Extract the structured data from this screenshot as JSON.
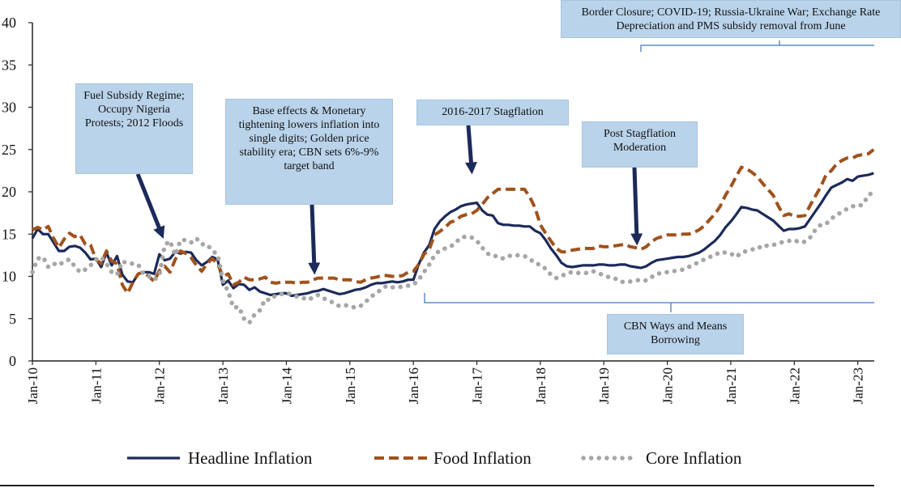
{
  "chart_data": {
    "type": "line",
    "categories": [
      "Jan-10",
      null,
      null,
      null,
      null,
      null,
      null,
      null,
      null,
      null,
      null,
      null,
      "Jan-11",
      null,
      null,
      null,
      null,
      null,
      null,
      null,
      null,
      null,
      null,
      null,
      "Jan-12",
      null,
      null,
      null,
      null,
      null,
      null,
      null,
      null,
      null,
      null,
      null,
      "Jan-13",
      null,
      null,
      null,
      null,
      null,
      null,
      null,
      null,
      null,
      null,
      null,
      "Jan-14",
      null,
      null,
      null,
      null,
      null,
      null,
      null,
      null,
      null,
      null,
      null,
      "Jan-15",
      null,
      null,
      null,
      null,
      null,
      null,
      null,
      null,
      null,
      null,
      null,
      "Jan-16",
      null,
      null,
      null,
      null,
      null,
      null,
      null,
      null,
      null,
      null,
      null,
      "Jan-17",
      null,
      null,
      null,
      null,
      null,
      null,
      null,
      null,
      null,
      null,
      null,
      "Jan-18",
      null,
      null,
      null,
      null,
      null,
      null,
      null,
      null,
      null,
      null,
      null,
      "Jan-19",
      null,
      null,
      null,
      null,
      null,
      null,
      null,
      null,
      null,
      null,
      null,
      "Jan-20",
      null,
      null,
      null,
      null,
      null,
      null,
      null,
      null,
      null,
      null,
      null,
      "Jan-21",
      null,
      null,
      null,
      null,
      null,
      null,
      null,
      null,
      null,
      null,
      null,
      "Jan-22",
      null,
      null,
      null,
      null,
      null,
      null,
      null,
      null,
      null,
      null,
      null,
      "Jan-23",
      null,
      null,
      null
    ],
    "series": [
      {
        "name": "Headline Inflation",
        "color": "#1c2a5a",
        "style": "solid",
        "values": [
          14.5,
          15.6,
          15.0,
          15.0,
          14.0,
          13.0,
          13.0,
          13.5,
          13.6,
          13.4,
          12.8,
          12.0,
          12.1,
          11.1,
          12.8,
          11.3,
          12.4,
          10.2,
          9.4,
          9.3,
          10.3,
          10.5,
          10.5,
          10.3,
          12.6,
          11.9,
          12.1,
          12.9,
          12.7,
          12.9,
          12.8,
          11.9,
          11.3,
          11.7,
          12.3,
          12.0,
          9.0,
          9.5,
          8.6,
          9.1,
          9.0,
          8.4,
          8.7,
          8.2,
          8.0,
          7.8,
          7.9,
          8.0,
          8.0,
          7.7,
          7.8,
          7.9,
          8.0,
          8.2,
          8.3,
          8.5,
          8.3,
          8.1,
          7.9,
          8.0,
          8.2,
          8.4,
          8.5,
          8.7,
          9.0,
          9.2,
          9.2,
          9.3,
          9.4,
          9.3,
          9.4,
          9.6,
          9.6,
          11.4,
          12.8,
          13.7,
          15.6,
          16.5,
          17.1,
          17.6,
          17.9,
          18.3,
          18.5,
          18.6,
          18.7,
          17.8,
          17.3,
          17.2,
          16.3,
          16.1,
          16.1,
          16.0,
          16.0,
          15.9,
          15.9,
          15.4,
          15.1,
          14.3,
          13.3,
          12.5,
          11.6,
          11.2,
          11.1,
          11.2,
          11.3,
          11.3,
          11.3,
          11.4,
          11.4,
          11.3,
          11.3,
          11.4,
          11.4,
          11.2,
          11.1,
          11.0,
          11.2,
          11.6,
          11.9,
          12.0,
          12.1,
          12.2,
          12.3,
          12.3,
          12.4,
          12.6,
          12.8,
          13.2,
          13.7,
          14.2,
          14.9,
          15.8,
          16.5,
          17.3,
          18.2,
          18.1,
          17.9,
          17.8,
          17.4,
          17.0,
          16.6,
          16.0,
          15.4,
          15.6,
          15.6,
          15.7,
          15.9,
          16.8,
          17.7,
          18.6,
          19.6,
          20.5,
          20.8,
          21.1,
          21.5,
          21.3,
          21.8,
          21.9,
          22.0,
          22.2
        ]
      },
      {
        "name": "Food Inflation",
        "color": "#a0521d",
        "style": "dashed",
        "values": [
          15.5,
          15.8,
          15.5,
          15.9,
          14.5,
          13.4,
          14.4,
          15.1,
          14.7,
          14.9,
          13.8,
          13.7,
          12.0,
          11.5,
          13.0,
          11.8,
          11.5,
          9.0,
          8.0,
          9.3,
          10.3,
          10.5,
          10.0,
          9.4,
          10.7,
          11.2,
          10.5,
          12.0,
          13.0,
          12.7,
          12.2,
          11.3,
          10.6,
          11.5,
          12.1,
          11.5,
          10.0,
          10.3,
          9.0,
          9.3,
          9.9,
          9.6,
          9.6,
          9.7,
          9.9,
          9.3,
          9.2,
          9.3,
          9.3,
          9.3,
          9.2,
          9.3,
          9.3,
          9.6,
          9.8,
          9.8,
          9.8,
          9.8,
          9.6,
          9.6,
          9.6,
          9.4,
          9.3,
          9.6,
          9.8,
          9.9,
          10.1,
          10.1,
          10.0,
          10.0,
          10.1,
          10.5,
          10.6,
          11.4,
          12.6,
          13.2,
          14.9,
          15.3,
          15.8,
          16.4,
          16.6,
          17.1,
          17.3,
          17.4,
          17.8,
          18.5,
          19.3,
          19.8,
          20.3,
          20.3,
          20.3,
          20.3,
          20.3,
          20.3,
          19.4,
          18.1,
          16.1,
          15.1,
          14.2,
          13.3,
          12.9,
          12.9,
          13.1,
          13.2,
          13.3,
          13.3,
          13.3,
          13.6,
          13.5,
          13.5,
          13.6,
          13.7,
          13.8,
          13.5,
          13.4,
          13.2,
          13.5,
          14.1,
          14.5,
          14.7,
          14.9,
          14.9,
          14.9,
          15.0,
          15.0,
          15.2,
          15.5,
          16.0,
          16.7,
          17.4,
          18.3,
          19.6,
          20.6,
          21.8,
          22.9,
          22.7,
          22.3,
          21.8,
          21.0,
          20.3,
          19.6,
          18.3,
          17.2,
          17.4,
          17.1,
          17.1,
          17.2,
          18.4,
          19.5,
          20.6,
          22.0,
          22.5,
          23.3,
          23.7,
          24.0,
          24.0,
          24.3,
          24.4,
          24.5,
          25.0
        ]
      },
      {
        "name": "Core Inflation",
        "color": "#a6a6a6",
        "style": "dotted",
        "values": [
          10.5,
          12.1,
          12.3,
          11.1,
          11.5,
          11.3,
          11.8,
          12.0,
          11.2,
          10.5,
          10.8,
          11.3,
          12.0,
          12.3,
          11.5,
          10.5,
          10.2,
          11.8,
          11.5,
          11.5,
          11.4,
          10.3,
          10.0,
          9.6,
          10.1,
          13.7,
          14.2,
          12.5,
          14.3,
          14.3,
          14.0,
          14.5,
          13.8,
          13.8,
          13.0,
          12.6,
          9.5,
          8.2,
          6.3,
          6.4,
          5.0,
          4.5,
          5.5,
          6.0,
          7.3,
          7.2,
          7.8,
          7.9,
          8.0,
          7.9,
          7.6,
          7.5,
          7.2,
          7.5,
          7.8,
          7.4,
          7.2,
          6.8,
          6.5,
          6.6,
          6.5,
          6.3,
          6.5,
          7.0,
          7.6,
          8.0,
          8.5,
          8.9,
          8.7,
          8.7,
          8.8,
          8.9,
          9.0,
          9.6,
          10.5,
          11.4,
          12.5,
          13.1,
          13.3,
          13.5,
          14.0,
          14.6,
          14.7,
          14.6,
          14.2,
          13.4,
          12.7,
          12.4,
          12.4,
          12.1,
          12.4,
          12.5,
          12.5,
          12.4,
          12.1,
          11.5,
          11.4,
          10.9,
          10.2,
          9.8,
          10.0,
          10.4,
          10.5,
          10.4,
          10.4,
          10.4,
          10.6,
          10.4,
          10.1,
          9.9,
          9.8,
          9.4,
          9.3,
          9.4,
          9.5,
          9.6,
          9.5,
          9.9,
          10.3,
          10.4,
          10.5,
          10.6,
          10.7,
          10.8,
          11.1,
          11.4,
          11.7,
          12.0,
          12.3,
          12.5,
          12.9,
          12.8,
          12.7,
          12.3,
          12.8,
          13.0,
          13.2,
          13.2,
          13.7,
          13.6,
          13.7,
          13.9,
          14.1,
          14.2,
          14.3,
          14.0,
          14.1,
          14.6,
          15.5,
          16.1,
          16.2,
          16.8,
          17.3,
          17.6,
          18.0,
          18.3,
          18.3,
          18.5,
          19.6,
          20.0
        ]
      }
    ],
    "ylim": [
      0,
      40
    ],
    "yticks": [
      0,
      5,
      10,
      15,
      20,
      25,
      30,
      35,
      40
    ],
    "grid": false,
    "legend": "bottom",
    "annotations": [
      "Fuel Subsidy Regime; Occupy Nigeria Protests; 2012 Floods",
      "Base effects & Monetary tightening lowers inflation into single digits; Golden price stability era; CBN sets 6%-9% target band",
      "2016-2017 Stagflation",
      "Post Stagflation Moderation",
      "Border Closure; COVID-19; Russia-Ukraine War; Exchange Rate Depreciation and PMS subsidy removal from June",
      "CBN Ways and Means Borrowing"
    ]
  }
}
